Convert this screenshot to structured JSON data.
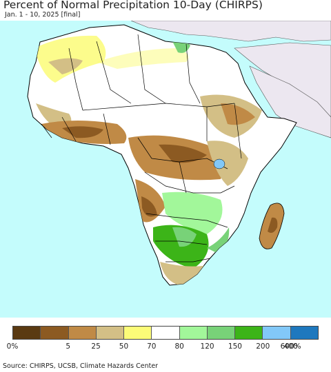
{
  "header": {
    "title": "Percent of Normal Precipitation 10-Day (CHIRPS)",
    "subtitle": "Jan. 1 - 10, 2025 [final]"
  },
  "map": {
    "ocean_color": "#c4fcfc",
    "land_color": "#ffffff",
    "outside_land_color": "#ece7f0",
    "border_color": "#000000"
  },
  "legend": {
    "colors": [
      "#5a3a12",
      "#8c5a22",
      "#c08a46",
      "#d3bf86",
      "#fcfc78",
      "#ffffff",
      "#a2f79a",
      "#78d278",
      "#3cb418",
      "#82c8f8",
      "#1e78be"
    ],
    "ticks": [
      "0%",
      "5",
      "25",
      "50",
      "70",
      "80",
      "120",
      "150",
      "200",
      "400",
      "600%"
    ]
  },
  "footer": {
    "source": "Source: CHIRPS, UCSB, Climate Hazards Center"
  }
}
